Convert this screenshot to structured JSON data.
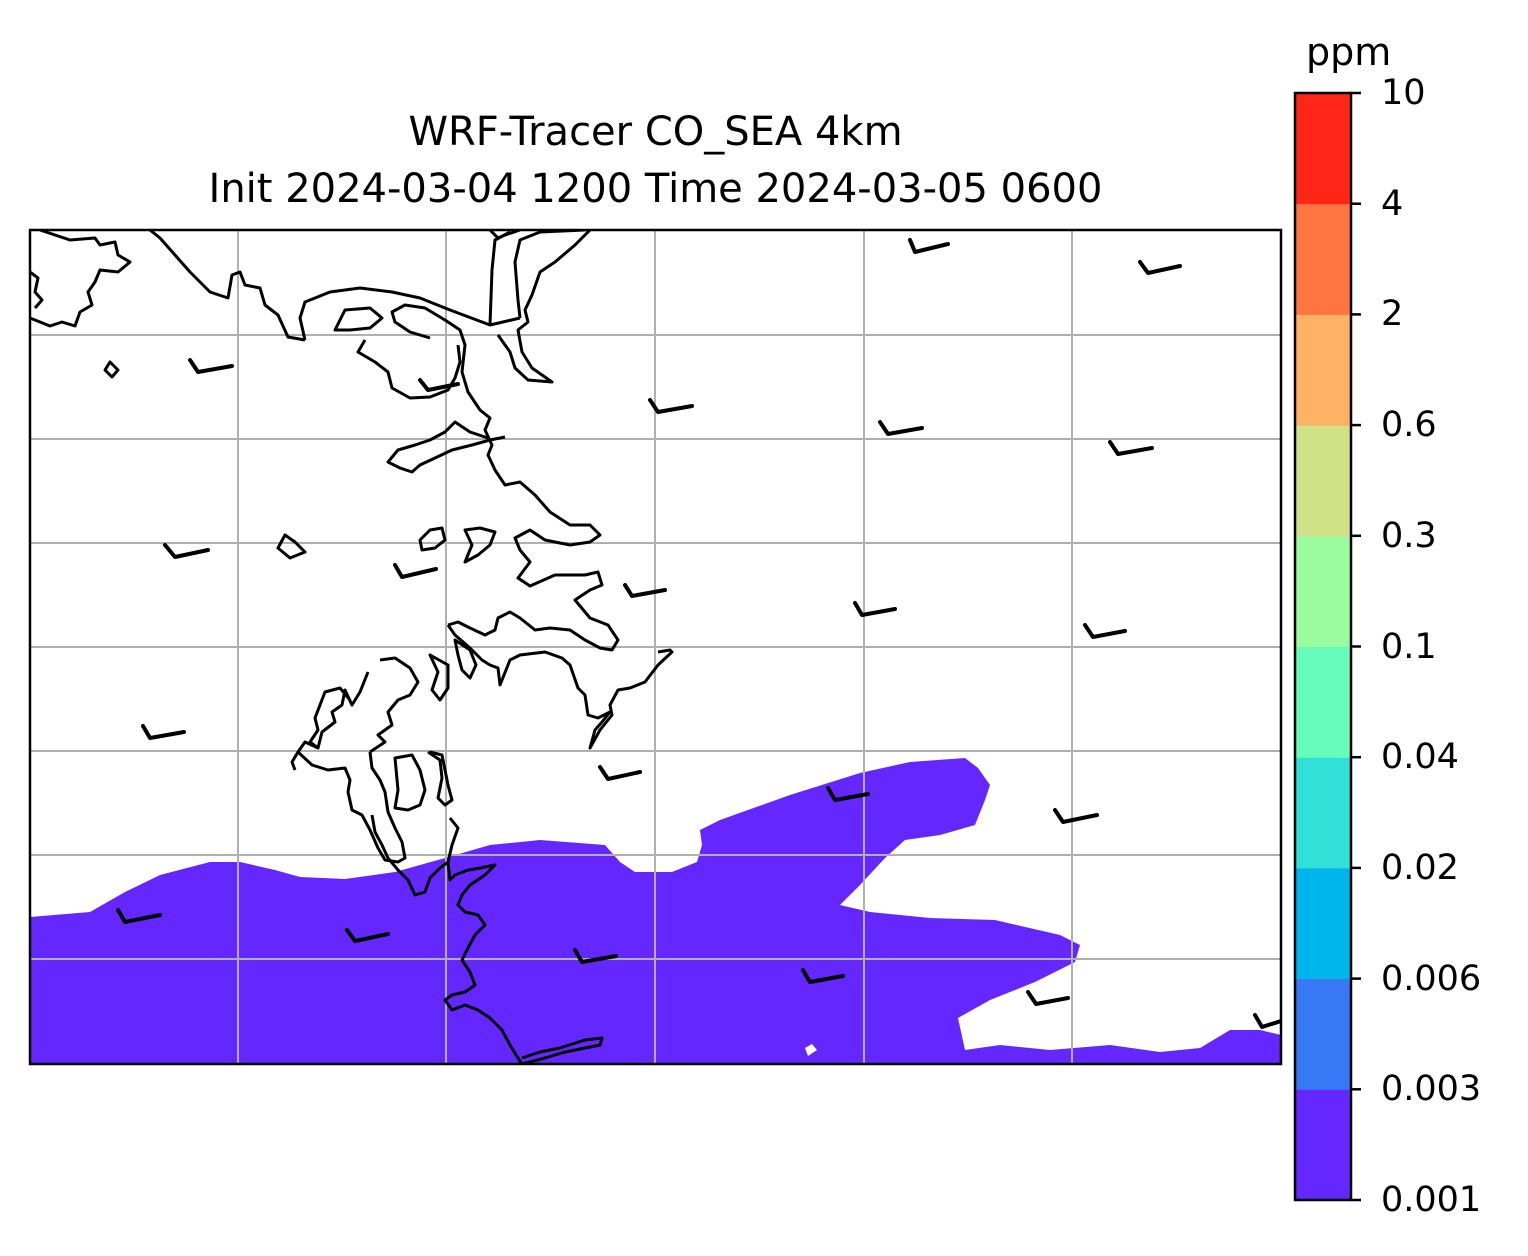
{
  "title_line1": "WRF-Tracer CO_SEA 4km",
  "title_line2": "Init 2024-03-04 1200 Time 2024-03-05 0600",
  "colorbar": {
    "unit": "ppm",
    "levels": [
      "0.001",
      "0.003",
      "0.006",
      "0.02",
      "0.04",
      "0.1",
      "0.3",
      "0.6",
      "2",
      "4",
      "10"
    ],
    "colors": [
      "#6427ff",
      "#3778f5",
      "#00b5ec",
      "#31e1d8",
      "#68fcbb",
      "#9bfb9f",
      "#d0e186",
      "#ffb165",
      "#ff7542",
      "#ff2617"
    ]
  },
  "map": {
    "filled_level": "0.001",
    "fill_color": "#6427ff",
    "gridline_color": "#b0b0b0",
    "coastline_color": "#000000"
  }
}
